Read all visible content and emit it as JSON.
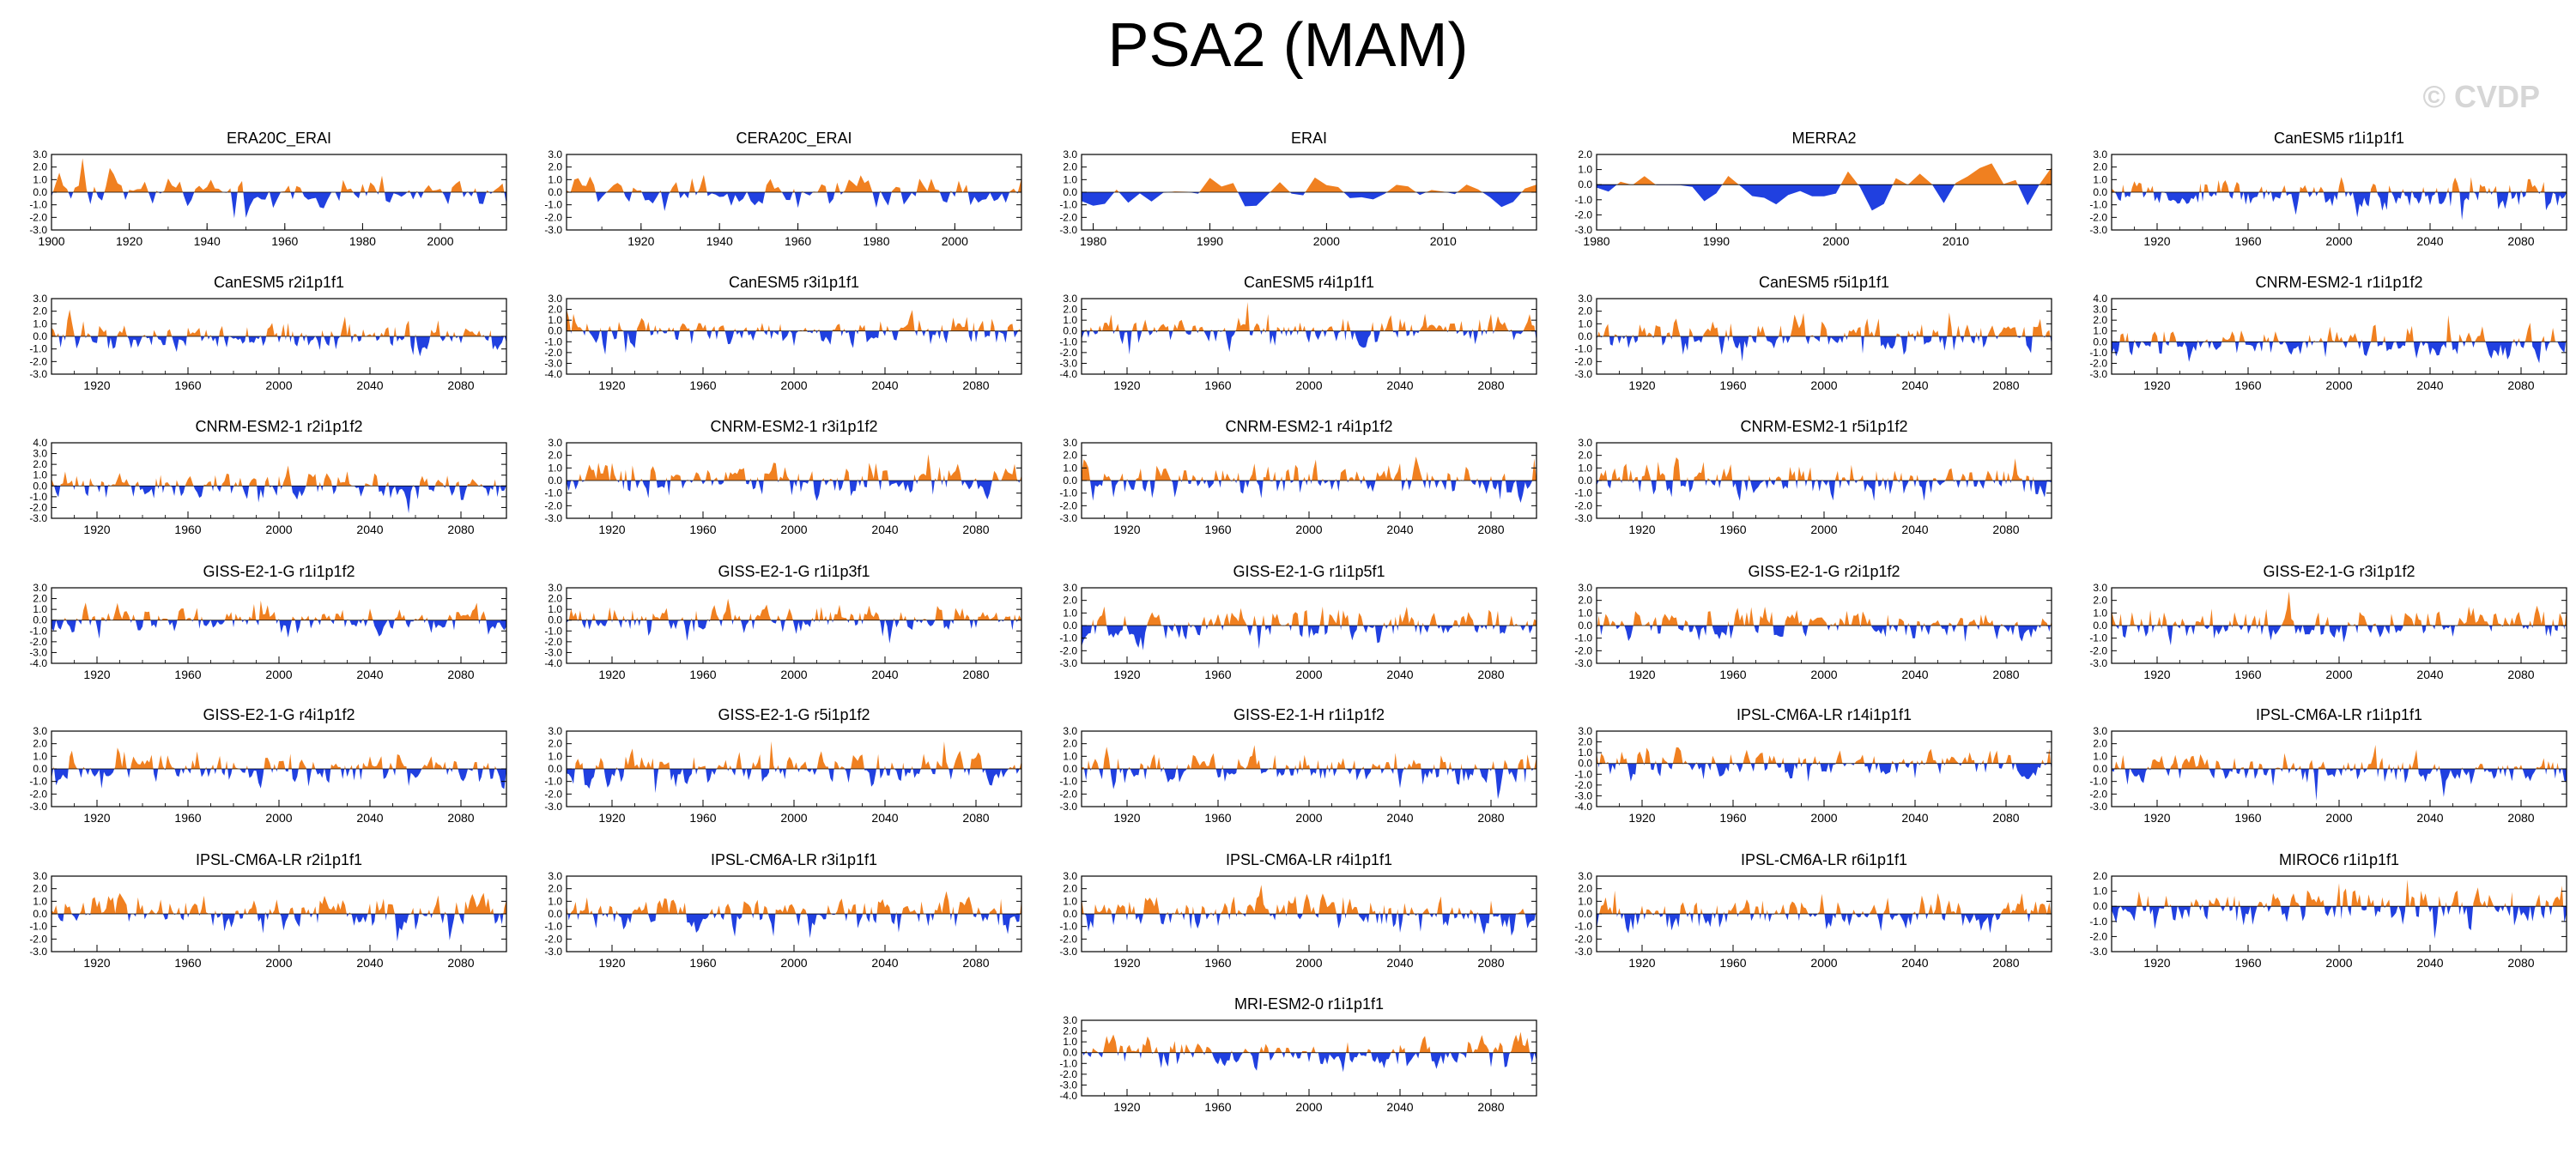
{
  "page": {
    "title": "PSA2 (MAM)",
    "watermark": "© CVDP"
  },
  "colors": {
    "positive": "#f08020",
    "negative": "#2040e0",
    "axis": "#000000"
  },
  "chart_data": [
    {
      "type": "area",
      "title": "ERA20C_ERAI",
      "x_range": [
        1900,
        2017
      ],
      "xticks": [
        1900,
        1920,
        1940,
        1960,
        1980,
        2000
      ],
      "ylim": [
        -3,
        3
      ],
      "yticks": [
        3,
        2,
        1,
        0,
        -1,
        -2,
        -3
      ],
      "amp": 1.0,
      "seed": 11
    },
    {
      "type": "area",
      "title": "CERA20C_ERAI",
      "x_range": [
        1901,
        2017
      ],
      "xticks": [
        1920,
        1940,
        1960,
        1980,
        2000
      ],
      "ylim": [
        -3,
        3
      ],
      "yticks": [
        3,
        2,
        1,
        0,
        -1,
        -2,
        -3
      ],
      "amp": 1.0,
      "seed": 12
    },
    {
      "type": "area",
      "title": "ERAI",
      "x_range": [
        1979,
        2018
      ],
      "xticks": [
        1980,
        1990,
        2000,
        2010
      ],
      "ylim": [
        -3,
        3
      ],
      "yticks": [
        3,
        2,
        1,
        0,
        -1,
        -2,
        -3
      ],
      "amp": 1.1,
      "seed": 13
    },
    {
      "type": "area",
      "title": "MERRA2",
      "x_range": [
        1980,
        2018
      ],
      "xticks": [
        1980,
        1990,
        2000,
        2010
      ],
      "ylim": [
        -3,
        2
      ],
      "yticks": [
        2,
        1,
        0,
        -1,
        -2,
        -3
      ],
      "amp": 1.1,
      "seed": 14
    },
    {
      "type": "area",
      "title": "CanESM5 r1i1p1f1",
      "x_range": [
        1900,
        2100
      ],
      "xticks": [
        1920,
        1960,
        2000,
        2040,
        2080
      ],
      "ylim": [
        -3,
        3
      ],
      "yticks": [
        3,
        2,
        1,
        0,
        -1,
        -2,
        -3
      ],
      "amp": 1.0,
      "seed": 15
    },
    {
      "type": "area",
      "title": "CanESM5 r2i1p1f1",
      "x_range": [
        1900,
        2100
      ],
      "xticks": [
        1920,
        1960,
        2000,
        2040,
        2080
      ],
      "ylim": [
        -3,
        3
      ],
      "yticks": [
        3,
        2,
        1,
        0,
        -1,
        -2,
        -3
      ],
      "amp": 1.0,
      "seed": 21
    },
    {
      "type": "area",
      "title": "CanESM5 r3i1p1f1",
      "x_range": [
        1900,
        2100
      ],
      "xticks": [
        1920,
        1960,
        2000,
        2040,
        2080
      ],
      "ylim": [
        -4,
        3
      ],
      "yticks": [
        3,
        2,
        1,
        0,
        -1,
        -2,
        -3,
        -4
      ],
      "amp": 1.0,
      "seed": 22
    },
    {
      "type": "area",
      "title": "CanESM5 r4i1p1f1",
      "x_range": [
        1900,
        2100
      ],
      "xticks": [
        1920,
        1960,
        2000,
        2040,
        2080
      ],
      "ylim": [
        -4,
        3
      ],
      "yticks": [
        3,
        2,
        1,
        0,
        -1,
        -2,
        -3,
        -4
      ],
      "amp": 1.0,
      "seed": 23
    },
    {
      "type": "area",
      "title": "CanESM5 r5i1p1f1",
      "x_range": [
        1900,
        2100
      ],
      "xticks": [
        1920,
        1960,
        2000,
        2040,
        2080
      ],
      "ylim": [
        -3,
        3
      ],
      "yticks": [
        3,
        2,
        1,
        0,
        -1,
        -2,
        -3
      ],
      "amp": 1.0,
      "seed": 24
    },
    {
      "type": "area",
      "title": "CNRM-ESM2-1 r1i1p1f2",
      "x_range": [
        1900,
        2100
      ],
      "xticks": [
        1920,
        1960,
        2000,
        2040,
        2080
      ],
      "ylim": [
        -3,
        4
      ],
      "yticks": [
        4,
        3,
        2,
        1,
        0,
        -1,
        -2,
        -3
      ],
      "amp": 1.1,
      "seed": 25
    },
    {
      "type": "area",
      "title": "CNRM-ESM2-1 r2i1p1f2",
      "x_range": [
        1900,
        2100
      ],
      "xticks": [
        1920,
        1960,
        2000,
        2040,
        2080
      ],
      "ylim": [
        -3,
        4
      ],
      "yticks": [
        4,
        3,
        2,
        1,
        0,
        -1,
        -2,
        -3
      ],
      "amp": 1.1,
      "seed": 31
    },
    {
      "type": "area",
      "title": "CNRM-ESM2-1 r3i1p1f2",
      "x_range": [
        1900,
        2100
      ],
      "xticks": [
        1920,
        1960,
        2000,
        2040,
        2080
      ],
      "ylim": [
        -3,
        3
      ],
      "yticks": [
        3,
        2,
        1,
        0,
        -1,
        -2,
        -3
      ],
      "amp": 1.0,
      "seed": 32
    },
    {
      "type": "area",
      "title": "CNRM-ESM2-1 r4i1p1f2",
      "x_range": [
        1900,
        2100
      ],
      "xticks": [
        1920,
        1960,
        2000,
        2040,
        2080
      ],
      "ylim": [
        -3,
        3
      ],
      "yticks": [
        3,
        2,
        1,
        0,
        -1,
        -2,
        -3
      ],
      "amp": 1.0,
      "seed": 33
    },
    {
      "type": "area",
      "title": "CNRM-ESM2-1 r5i1p1f2",
      "x_range": [
        1900,
        2100
      ],
      "xticks": [
        1920,
        1960,
        2000,
        2040,
        2080
      ],
      "ylim": [
        -3,
        3
      ],
      "yticks": [
        3,
        2,
        1,
        0,
        -1,
        -2,
        -3
      ],
      "amp": 1.0,
      "seed": 34
    },
    null,
    {
      "type": "area",
      "title": "GISS-E2-1-G r1i1p1f2",
      "x_range": [
        1900,
        2100
      ],
      "xticks": [
        1920,
        1960,
        2000,
        2040,
        2080
      ],
      "ylim": [
        -4,
        3
      ],
      "yticks": [
        3,
        2,
        1,
        0,
        -1,
        -2,
        -3,
        -4
      ],
      "amp": 1.0,
      "seed": 41
    },
    {
      "type": "area",
      "title": "GISS-E2-1-G r1i1p3f1",
      "x_range": [
        1900,
        2100
      ],
      "xticks": [
        1920,
        1960,
        2000,
        2040,
        2080
      ],
      "ylim": [
        -4,
        3
      ],
      "yticks": [
        3,
        2,
        1,
        0,
        -1,
        -2,
        -3,
        -4
      ],
      "amp": 1.0,
      "seed": 42
    },
    {
      "type": "area",
      "title": "GISS-E2-1-G r1i1p5f1",
      "x_range": [
        1900,
        2100
      ],
      "xticks": [
        1920,
        1960,
        2000,
        2040,
        2080
      ],
      "ylim": [
        -3,
        3
      ],
      "yticks": [
        3,
        2,
        1,
        0,
        -1,
        -2,
        -3
      ],
      "amp": 1.0,
      "seed": 43
    },
    {
      "type": "area",
      "title": "GISS-E2-1-G r2i1p1f2",
      "x_range": [
        1900,
        2100
      ],
      "xticks": [
        1920,
        1960,
        2000,
        2040,
        2080
      ],
      "ylim": [
        -3,
        3
      ],
      "yticks": [
        3,
        2,
        1,
        0,
        -1,
        -2,
        -3
      ],
      "amp": 1.0,
      "seed": 44
    },
    {
      "type": "area",
      "title": "GISS-E2-1-G r3i1p1f2",
      "x_range": [
        1900,
        2100
      ],
      "xticks": [
        1920,
        1960,
        2000,
        2040,
        2080
      ],
      "ylim": [
        -3,
        3
      ],
      "yticks": [
        3,
        2,
        1,
        0,
        -1,
        -2,
        -3
      ],
      "amp": 1.0,
      "seed": 45
    },
    {
      "type": "area",
      "title": "GISS-E2-1-G r4i1p1f2",
      "x_range": [
        1900,
        2100
      ],
      "xticks": [
        1920,
        1960,
        2000,
        2040,
        2080
      ],
      "ylim": [
        -3,
        3
      ],
      "yticks": [
        3,
        2,
        1,
        0,
        -1,
        -2,
        -3
      ],
      "amp": 1.0,
      "seed": 51
    },
    {
      "type": "area",
      "title": "GISS-E2-1-G r5i1p1f2",
      "x_range": [
        1900,
        2100
      ],
      "xticks": [
        1920,
        1960,
        2000,
        2040,
        2080
      ],
      "ylim": [
        -3,
        3
      ],
      "yticks": [
        3,
        2,
        1,
        0,
        -1,
        -2,
        -3
      ],
      "amp": 1.0,
      "seed": 52
    },
    {
      "type": "area",
      "title": "GISS-E2-1-H r1i1p1f2",
      "x_range": [
        1900,
        2100
      ],
      "xticks": [
        1920,
        1960,
        2000,
        2040,
        2080
      ],
      "ylim": [
        -3,
        3
      ],
      "yticks": [
        3,
        2,
        1,
        0,
        -1,
        -2,
        -3
      ],
      "amp": 1.0,
      "seed": 53
    },
    {
      "type": "area",
      "title": "IPSL-CM6A-LR r14i1p1f1",
      "x_range": [
        1900,
        2100
      ],
      "xticks": [
        1920,
        1960,
        2000,
        2040,
        2080
      ],
      "ylim": [
        -4,
        3
      ],
      "yticks": [
        3,
        2,
        1,
        0,
        -1,
        -2,
        -3,
        -4
      ],
      "amp": 1.0,
      "seed": 54
    },
    {
      "type": "area",
      "title": "IPSL-CM6A-LR r1i1p1f1",
      "x_range": [
        1900,
        2100
      ],
      "xticks": [
        1920,
        1960,
        2000,
        2040,
        2080
      ],
      "ylim": [
        -3,
        3
      ],
      "yticks": [
        3,
        2,
        1,
        0,
        -1,
        -2,
        -3
      ],
      "amp": 1.0,
      "seed": 55
    },
    {
      "type": "area",
      "title": "IPSL-CM6A-LR r2i1p1f1",
      "x_range": [
        1900,
        2100
      ],
      "xticks": [
        1920,
        1960,
        2000,
        2040,
        2080
      ],
      "ylim": [
        -3,
        3
      ],
      "yticks": [
        3,
        2,
        1,
        0,
        -1,
        -2,
        -3
      ],
      "amp": 1.0,
      "seed": 61
    },
    {
      "type": "area",
      "title": "IPSL-CM6A-LR r3i1p1f1",
      "x_range": [
        1900,
        2100
      ],
      "xticks": [
        1920,
        1960,
        2000,
        2040,
        2080
      ],
      "ylim": [
        -3,
        3
      ],
      "yticks": [
        3,
        2,
        1,
        0,
        -1,
        -2,
        -3
      ],
      "amp": 1.0,
      "seed": 62
    },
    {
      "type": "area",
      "title": "IPSL-CM6A-LR r4i1p1f1",
      "x_range": [
        1900,
        2100
      ],
      "xticks": [
        1920,
        1960,
        2000,
        2040,
        2080
      ],
      "ylim": [
        -3,
        3
      ],
      "yticks": [
        3,
        2,
        1,
        0,
        -1,
        -2,
        -3
      ],
      "amp": 1.0,
      "seed": 63
    },
    {
      "type": "area",
      "title": "IPSL-CM6A-LR r6i1p1f1",
      "x_range": [
        1900,
        2100
      ],
      "xticks": [
        1920,
        1960,
        2000,
        2040,
        2080
      ],
      "ylim": [
        -3,
        3
      ],
      "yticks": [
        3,
        2,
        1,
        0,
        -1,
        -2,
        -3
      ],
      "amp": 1.0,
      "seed": 64
    },
    {
      "type": "area",
      "title": "MIROC6 r1i1p1f1",
      "x_range": [
        1900,
        2100
      ],
      "xticks": [
        1920,
        1960,
        2000,
        2040,
        2080
      ],
      "ylim": [
        -3,
        2
      ],
      "yticks": [
        2,
        1,
        0,
        -1,
        -2,
        -3
      ],
      "amp": 1.0,
      "seed": 65
    },
    null,
    null,
    {
      "type": "area",
      "title": "MRI-ESM2-0 r1i1p1f1",
      "x_range": [
        1900,
        2100
      ],
      "xticks": [
        1920,
        1960,
        2000,
        2040,
        2080
      ],
      "ylim": [
        -4,
        3
      ],
      "yticks": [
        3,
        2,
        1,
        0,
        -1,
        -2,
        -3,
        -4
      ],
      "amp": 1.0,
      "seed": 71
    }
  ]
}
